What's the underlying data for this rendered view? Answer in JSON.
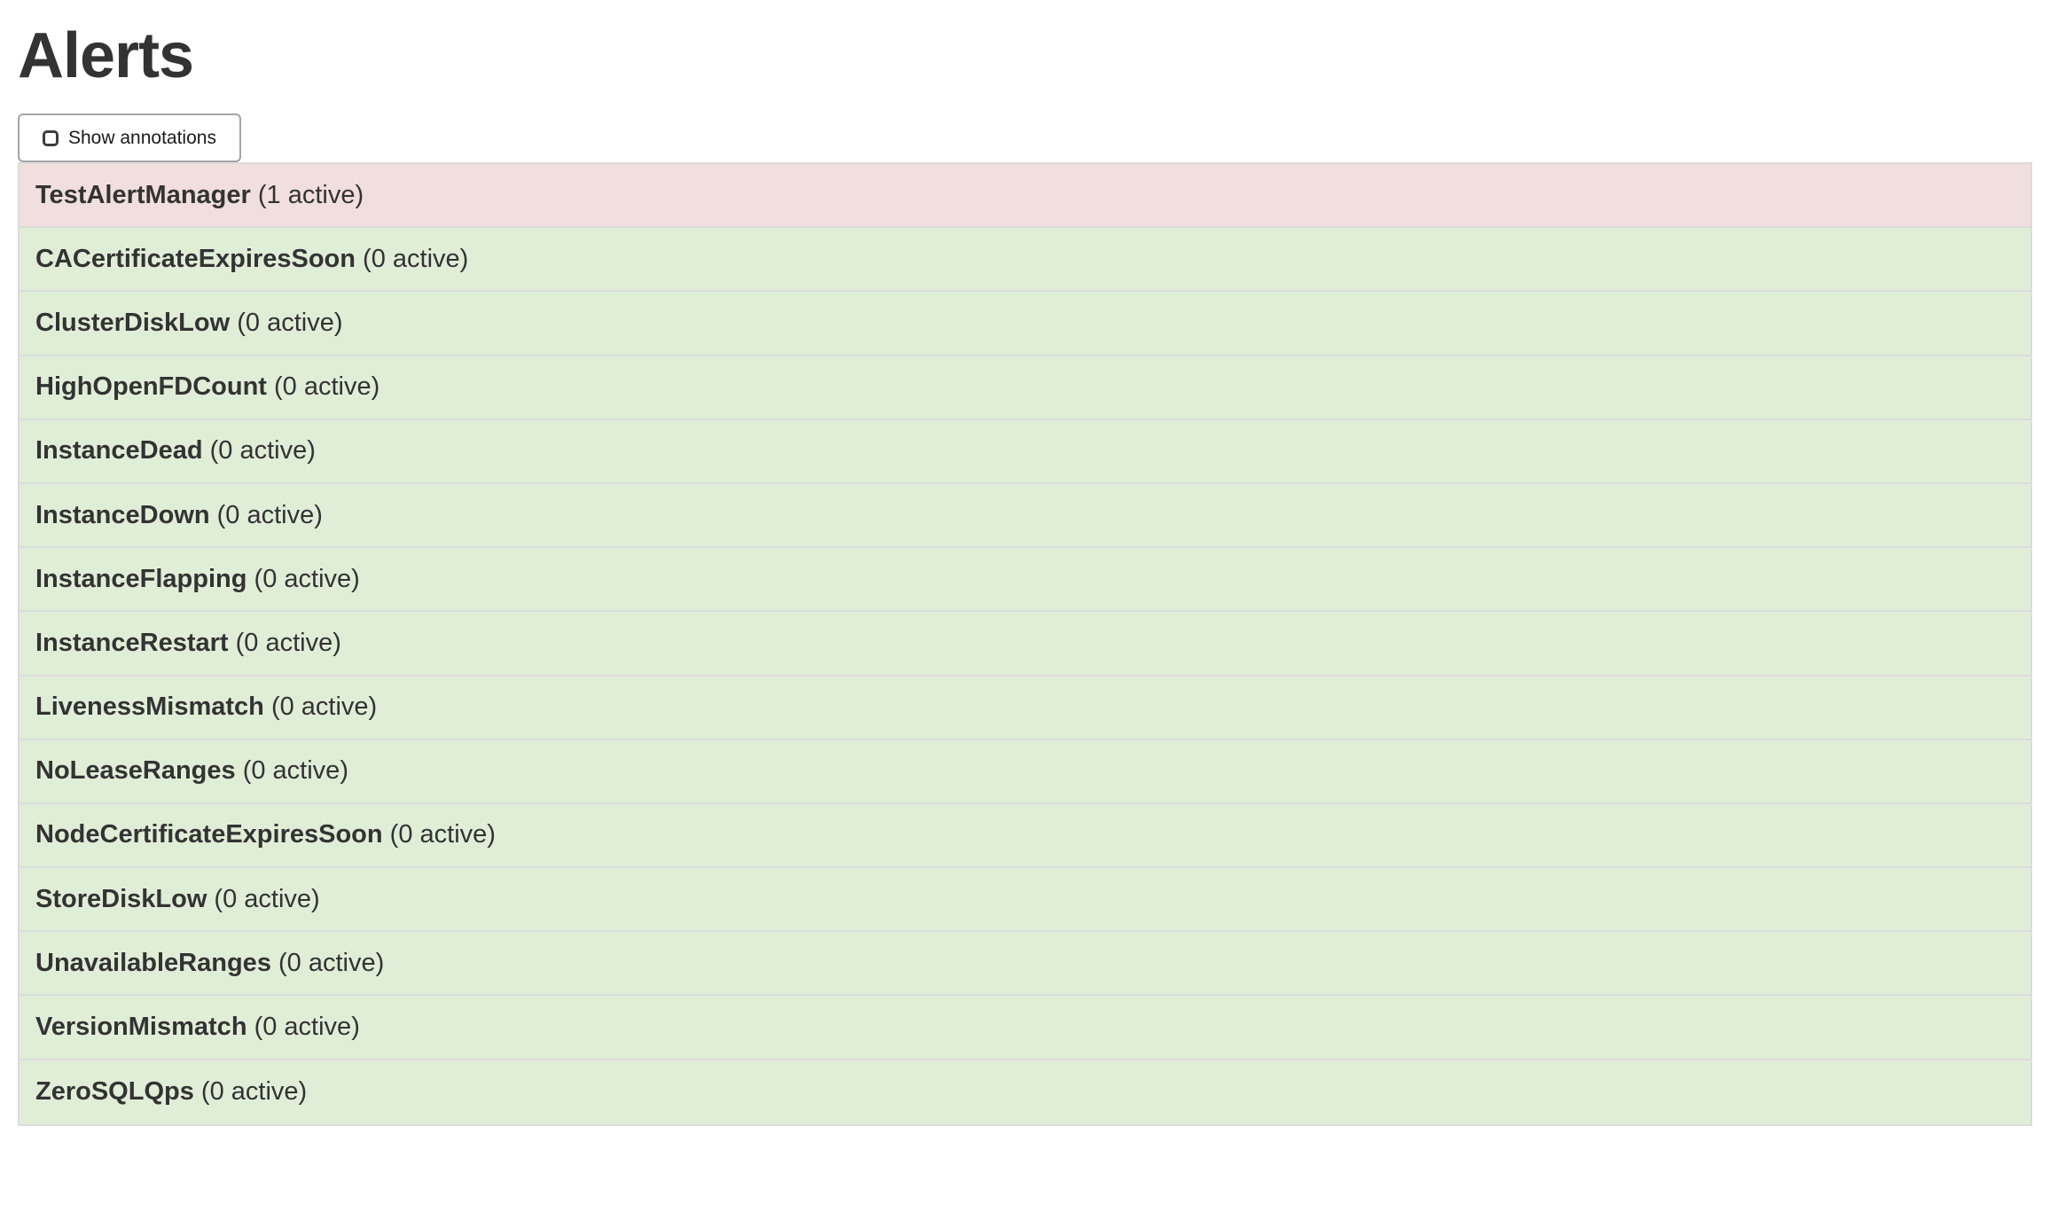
{
  "page": {
    "title": "Alerts"
  },
  "controls": {
    "show_annotations_label": "Show annotations",
    "show_annotations_checked": false
  },
  "alerts": [
    {
      "name": "TestAlertManager",
      "active_count": 1,
      "count_label": "(1 active)"
    },
    {
      "name": "CACertificateExpiresSoon",
      "active_count": 0,
      "count_label": "(0 active)"
    },
    {
      "name": "ClusterDiskLow",
      "active_count": 0,
      "count_label": "(0 active)"
    },
    {
      "name": "HighOpenFDCount",
      "active_count": 0,
      "count_label": "(0 active)"
    },
    {
      "name": "InstanceDead",
      "active_count": 0,
      "count_label": "(0 active)"
    },
    {
      "name": "InstanceDown",
      "active_count": 0,
      "count_label": "(0 active)"
    },
    {
      "name": "InstanceFlapping",
      "active_count": 0,
      "count_label": "(0 active)"
    },
    {
      "name": "InstanceRestart",
      "active_count": 0,
      "count_label": "(0 active)"
    },
    {
      "name": "LivenessMismatch",
      "active_count": 0,
      "count_label": "(0 active)"
    },
    {
      "name": "NoLeaseRanges",
      "active_count": 0,
      "count_label": "(0 active)"
    },
    {
      "name": "NodeCertificateExpiresSoon",
      "active_count": 0,
      "count_label": "(0 active)"
    },
    {
      "name": "StoreDiskLow",
      "active_count": 0,
      "count_label": "(0 active)"
    },
    {
      "name": "UnavailableRanges",
      "active_count": 0,
      "count_label": "(0 active)"
    },
    {
      "name": "VersionMismatch",
      "active_count": 0,
      "count_label": "(0 active)"
    },
    {
      "name": "ZeroSQLQps",
      "active_count": 0,
      "count_label": "(0 active)"
    }
  ],
  "colors": {
    "active_row_bg": "#f1dede",
    "inactive_row_bg": "#e0eed8",
    "row_border": "#dcdcdc",
    "text": "#333333"
  }
}
